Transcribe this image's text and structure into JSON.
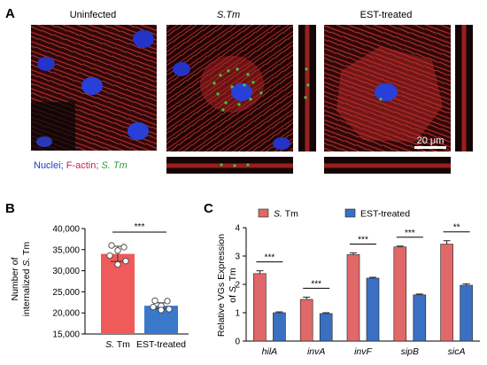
{
  "panel_a": {
    "letter": "A",
    "images": [
      {
        "title": "Uninfected",
        "title_italic": false
      },
      {
        "title": "S.Tm",
        "title_italic": true
      },
      {
        "title": "EST-treated",
        "title_italic": false
      }
    ],
    "scale_bar_label": "20 μm",
    "legend": [
      {
        "text": "Nuclei",
        "color": "#1f3fbf",
        "italic": false
      },
      {
        "text": "; ",
        "color": "#1f3fbf",
        "italic": false
      },
      {
        "text": "F-actin",
        "color": "#d0204a",
        "italic": false
      },
      {
        "text": "; ",
        "color": "#d0204a",
        "italic": false
      },
      {
        "text": "S. Tm",
        "color": "#2e9e3a",
        "italic": true
      }
    ]
  },
  "chart_data": [
    {
      "panel": "B",
      "type": "bar",
      "categories": [
        "S. Tm",
        "EST-treated"
      ],
      "categories_italic": [
        true,
        false
      ],
      "values": [
        34000,
        21700
      ],
      "errors": [
        1800,
        700
      ],
      "points": [
        [
          36000,
          35600,
          34800,
          33600,
          32300,
          31500
        ],
        [
          22900,
          22800,
          21700,
          21400,
          20900,
          20700
        ]
      ],
      "colors": [
        "#ef5a5a",
        "#3a78c9"
      ],
      "ylabel_lines": [
        "Number of",
        "internalized S. Tm"
      ],
      "ylim": [
        15000,
        40000
      ],
      "yticks": [
        15000,
        20000,
        25000,
        30000,
        35000,
        40000
      ],
      "ytick_labels": [
        "15,000",
        "20,000",
        "25,000",
        "30,000",
        "35,000",
        "40,000"
      ],
      "significance": [
        {
          "from": 0,
          "to": 1,
          "label": "***"
        }
      ]
    },
    {
      "panel": "C",
      "type": "bar",
      "categories": [
        "hilA",
        "invA",
        "invF",
        "sipB",
        "sicA"
      ],
      "categories_italic": true,
      "series": [
        {
          "name": "S. Tm",
          "name_italic_prefix": "S.",
          "values": [
            2.38,
            1.47,
            3.05,
            3.32,
            3.42
          ],
          "errors": [
            0.1,
            0.08,
            0.06,
            0.03,
            0.12
          ],
          "color": "#e06868"
        },
        {
          "name": "EST-treated",
          "values": [
            1.0,
            0.97,
            2.22,
            1.63,
            1.97
          ],
          "errors": [
            0.03,
            0.03,
            0.03,
            0.03,
            0.05
          ],
          "color": "#3a6fc2"
        }
      ],
      "ylabel_lines": [
        "Relative VGs Expression",
        "of S. Tm"
      ],
      "ylim": [
        0,
        4
      ],
      "yticks": [
        0,
        1,
        2,
        3,
        4
      ],
      "ytick_labels": [
        "0",
        "1",
        "2",
        "3",
        "4"
      ],
      "significance": [
        "***",
        "***",
        "***",
        "***",
        "**"
      ],
      "legend_position": "top"
    }
  ]
}
